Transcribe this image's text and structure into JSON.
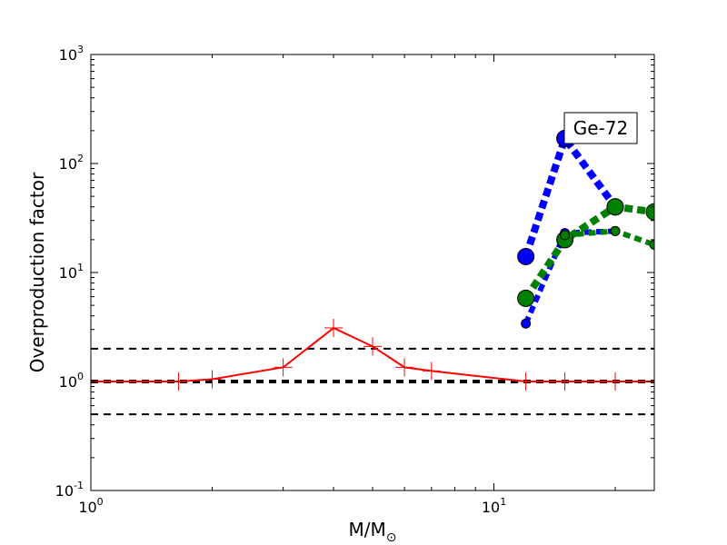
{
  "chart_data": {
    "type": "line",
    "xlabel": "M/M",
    "xlabel_sub": "⊙",
    "ylabel": "Overproduction factor",
    "xscale": "log",
    "yscale": "log",
    "xlim": [
      1,
      25
    ],
    "ylim": [
      0.1,
      1000
    ],
    "x_ticks": [
      {
        "base": "10",
        "exp": "0",
        "value": 1
      },
      {
        "base": "10",
        "exp": "1",
        "value": 10
      }
    ],
    "y_ticks": [
      {
        "base": "10",
        "exp": "-1",
        "value": 0.1
      },
      {
        "base": "10",
        "exp": "0",
        "value": 1
      },
      {
        "base": "10",
        "exp": "1",
        "value": 10
      },
      {
        "base": "10",
        "exp": "2",
        "value": 100
      },
      {
        "base": "10",
        "exp": "3",
        "value": 1000
      }
    ],
    "reference_lines": [
      0.5,
      1,
      2
    ],
    "annotation": "Ge-72",
    "legend_placement": "top-right",
    "grid": false,
    "series": [
      {
        "color": "#ff0000",
        "style": "solid",
        "marker": "plus",
        "points": [
          [
            1.0,
            1.0
          ],
          [
            1.65,
            1.0
          ],
          [
            2.0,
            1.05
          ],
          [
            3.0,
            1.35
          ],
          [
            4.0,
            3.1
          ],
          [
            5.0,
            2.1
          ],
          [
            6.0,
            1.35
          ],
          [
            7.0,
            1.25
          ],
          [
            12.0,
            1.0
          ],
          [
            15.0,
            1.0
          ],
          [
            20.0,
            1.0
          ],
          [
            25.0,
            1.0
          ]
        ]
      },
      {
        "color": "#0000ff",
        "style": "dotted",
        "marker": "circle-large",
        "points": [
          [
            12,
            14
          ],
          [
            15,
            170
          ],
          [
            20,
            40
          ]
        ]
      },
      {
        "color": "#0000ff",
        "style": "dotted",
        "marker": "circle-small",
        "points": [
          [
            12,
            3.4
          ],
          [
            15,
            23
          ],
          [
            20,
            24
          ]
        ]
      },
      {
        "color": "#008000",
        "style": "dotted",
        "marker": "circle-large",
        "points": [
          [
            12,
            5.8
          ],
          [
            15,
            20
          ],
          [
            20,
            40
          ],
          [
            25,
            36
          ]
        ]
      },
      {
        "color": "#008000",
        "style": "dotted",
        "marker": "circle-small",
        "points": [
          [
            15,
            22
          ],
          [
            20,
            24
          ],
          [
            25,
            18
          ]
        ]
      }
    ]
  }
}
